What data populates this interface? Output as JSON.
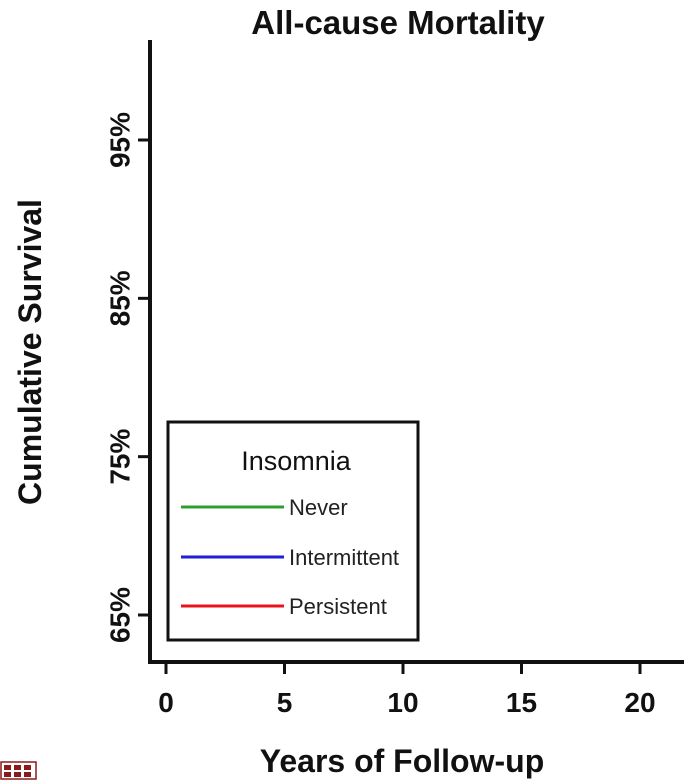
{
  "chart_data": {
    "type": "line",
    "title": "All-cause Mortality",
    "xlabel": "Years of Follow-up",
    "ylabel": "Cumulative Survival",
    "x_ticks": [
      0,
      5,
      10,
      15,
      20
    ],
    "x_tick_labels": [
      "0",
      "5",
      "10",
      "15",
      "20"
    ],
    "y_ticks": [
      65,
      75,
      85,
      95
    ],
    "y_tick_labels": [
      "65%",
      "75%",
      "85%",
      "95%"
    ],
    "xlim": [
      0,
      21.5
    ],
    "ylim": [
      63,
      100
    ],
    "grid": false,
    "legend": {
      "title": "Insomnia",
      "placement": "bottom-left",
      "entries": [
        {
          "name": "Never",
          "color": "#2ca02c"
        },
        {
          "name": "Intermittent",
          "color": "#1f1fd6"
        },
        {
          "name": "Persistent",
          "color": "#e8141a"
        }
      ]
    },
    "series": []
  },
  "colors": {
    "axis": "#111111",
    "text": "#111111"
  }
}
